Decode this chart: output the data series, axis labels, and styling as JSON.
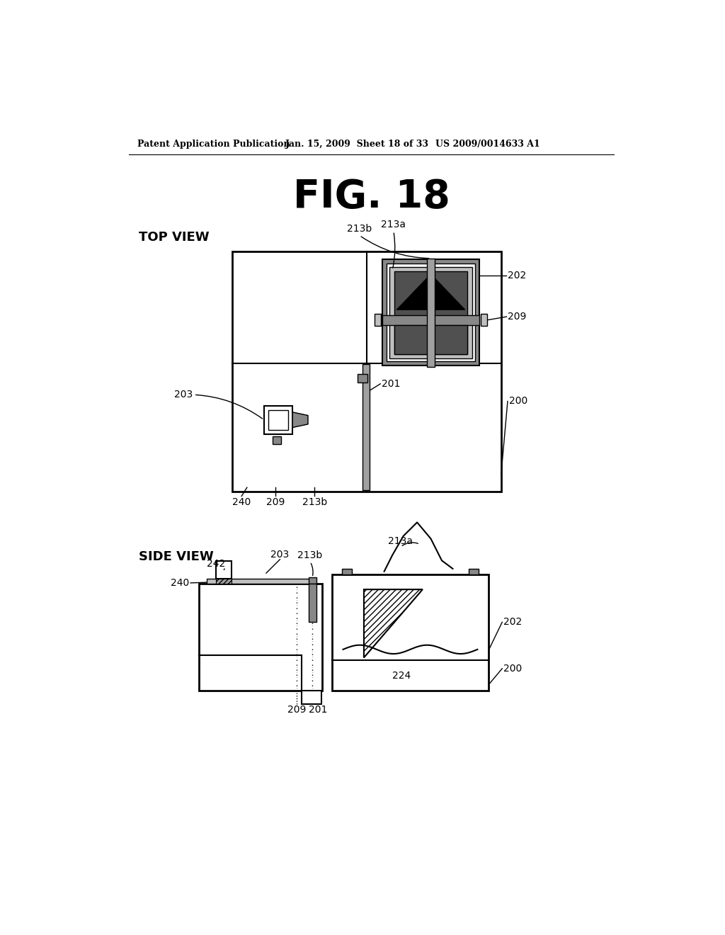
{
  "title": "FIG. 18",
  "header_left": "Patent Application Publication",
  "header_center": "Jan. 15, 2009  Sheet 18 of 33",
  "header_right": "US 2009/0014633 A1",
  "top_view_label": "TOP VIEW",
  "side_view_label": "SIDE VIEW",
  "bg_color": "#ffffff",
  "gray_light": "#c0c0c0",
  "gray_medium": "#888888",
  "gray_dark": "#505050",
  "gray_stripe": "#a0a0a0"
}
